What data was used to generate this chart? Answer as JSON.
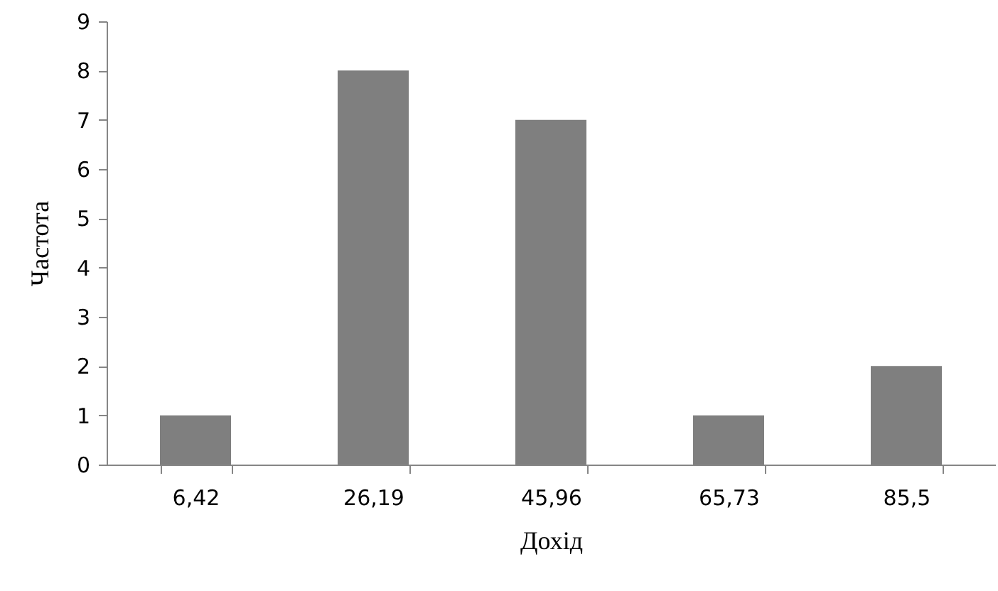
{
  "chart_data": {
    "type": "bar",
    "xlabel": "Дохід",
    "ylabel": "Частота",
    "categories": [
      "6,42",
      "26,19",
      "45,96",
      "65,73",
      "85,5"
    ],
    "values": [
      1,
      8,
      7,
      1,
      2
    ],
    "color": "#7f7f7f",
    "ylim": [
      0,
      9
    ],
    "yticks": [
      0,
      1,
      2,
      3,
      4,
      5,
      6,
      7,
      8,
      9
    ],
    "grid": false
  }
}
